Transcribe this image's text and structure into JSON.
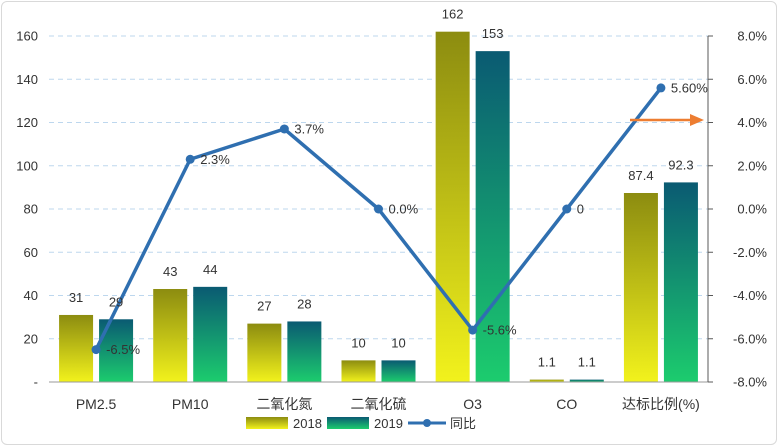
{
  "chart_data": {
    "type": "bar",
    "categories": [
      "PM2.5",
      "PM10",
      "二氧化氮",
      "二氧化硫",
      "O3",
      "CO",
      "达标比例(%)"
    ],
    "series": [
      {
        "name": "2018",
        "values": [
          31,
          43,
          27,
          10,
          162,
          1.1,
          87.4
        ],
        "labels": [
          "31",
          "43",
          "27",
          "10",
          "162",
          "1.1",
          "87.4"
        ]
      },
      {
        "name": "2019",
        "values": [
          29,
          44,
          28,
          10,
          153,
          1.1,
          92.3
        ],
        "labels": [
          "29",
          "44",
          "28",
          "10",
          "153",
          "1.1",
          "92.3"
        ]
      }
    ],
    "line_series": {
      "name": "同比",
      "axis": "secondary",
      "values": [
        -6.5,
        2.3,
        3.7,
        0.0,
        -5.6,
        0.0,
        5.6
      ],
      "labels": [
        "-6.5%",
        "2.3%",
        "3.7%",
        "0.0%",
        "-5.6%",
        "0",
        "5.60%"
      ]
    },
    "y_left": {
      "ylim": [
        0,
        160
      ],
      "ticks": [
        "-",
        "20",
        "40",
        "60",
        "80",
        "100",
        "120",
        "140",
        "160"
      ]
    },
    "y_right": {
      "ylim": [
        -8,
        8
      ],
      "ticks": [
        "-8.0%",
        "-6.0%",
        "-4.0%",
        "-2.0%",
        "0.0%",
        "2.0%",
        "4.0%",
        "6.0%",
        "8.0%"
      ]
    },
    "grid": true,
    "legend_position": "bottom",
    "colors": {
      "bar2018_top": "#8c8c10",
      "bar2018_bottom": "#f2f21c",
      "bar2019_top": "#0a5a72",
      "bar2019_bottom": "#1ccc6e",
      "line": "#2f6fb0",
      "arrow": "#ed7d31",
      "grid": "#bdd7ee",
      "axis": "#595959"
    }
  }
}
